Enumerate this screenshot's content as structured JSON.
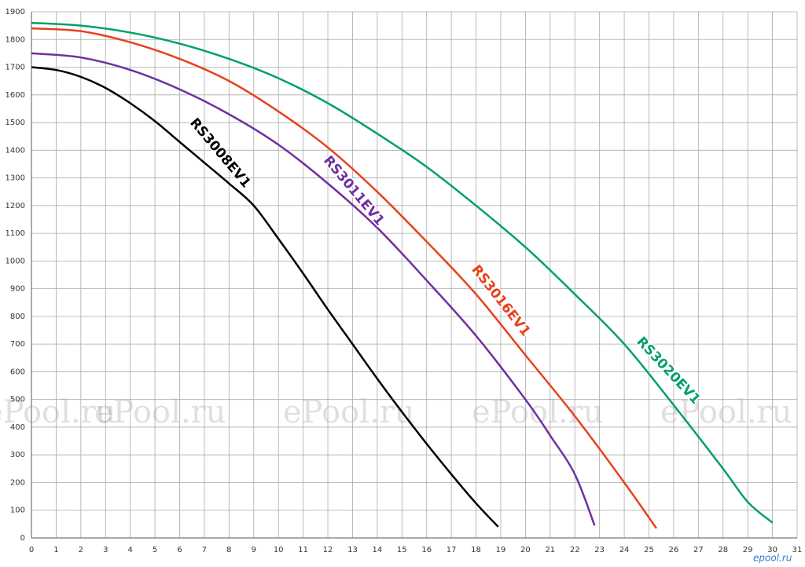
{
  "chart_data": {
    "type": "line",
    "series": [
      {
        "name": "RS3008EV1",
        "color": "#000000",
        "x": [
          0,
          1,
          2,
          3,
          4,
          5,
          6,
          7,
          8,
          9,
          10,
          11,
          12,
          13,
          14,
          15,
          16,
          17,
          18,
          18.9
        ],
        "values": [
          1700,
          1690,
          1665,
          1625,
          1570,
          1505,
          1430,
          1355,
          1280,
          1200,
          1080,
          955,
          825,
          700,
          575,
          455,
          340,
          230,
          125,
          40
        ]
      },
      {
        "name": "RS3011EV1",
        "color": "#7030a0",
        "x": [
          0,
          2,
          4,
          6,
          8,
          10,
          12,
          14,
          16,
          18,
          20,
          21,
          22,
          22.8
        ],
        "values": [
          1750,
          1735,
          1690,
          1620,
          1530,
          1420,
          1280,
          1120,
          930,
          730,
          500,
          370,
          230,
          45
        ]
      },
      {
        "name": "RS3016EV1",
        "color": "#e8401c",
        "x": [
          0,
          2,
          4,
          6,
          8,
          10,
          12,
          14,
          16,
          18,
          20,
          22,
          24,
          25.3
        ],
        "values": [
          1840,
          1830,
          1790,
          1730,
          1650,
          1540,
          1410,
          1250,
          1070,
          880,
          660,
          440,
          200,
          35
        ]
      },
      {
        "name": "RS3020EV1",
        "color": "#00a06a",
        "x": [
          0,
          2,
          4,
          6,
          8,
          10,
          12,
          14,
          16,
          18,
          20,
          22,
          24,
          26,
          28,
          29,
          30
        ],
        "values": [
          1860,
          1850,
          1825,
          1785,
          1730,
          1660,
          1570,
          1460,
          1340,
          1200,
          1050,
          880,
          700,
          480,
          250,
          130,
          55
        ]
      }
    ],
    "xlim": [
      0,
      31
    ],
    "xticks": [
      0,
      1,
      2,
      3,
      4,
      5,
      6,
      7,
      8,
      9,
      10,
      11,
      12,
      13,
      14,
      15,
      16,
      17,
      18,
      19,
      20,
      21,
      22,
      23,
      24,
      25,
      26,
      27,
      28,
      29,
      30,
      31
    ],
    "ylim": [
      0,
      1900
    ],
    "yticks": [
      0,
      100,
      200,
      300,
      400,
      500,
      600,
      700,
      800,
      900,
      1000,
      1100,
      1200,
      1300,
      1400,
      1500,
      1600,
      1700,
      1800,
      1900
    ],
    "grid": true
  },
  "watermark": "ePool.ru",
  "logo": "epool.ru"
}
